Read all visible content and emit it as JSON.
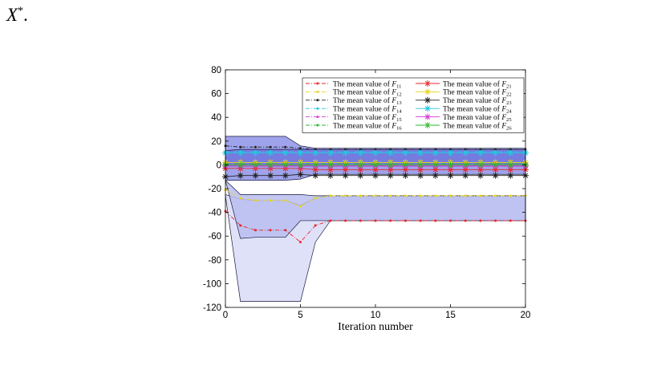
{
  "page_fragment": {
    "symbol": "X",
    "sup": "*",
    "tail": "."
  },
  "chart_data": {
    "type": "line",
    "title": "",
    "xlabel": "Iteration number",
    "ylabel": "",
    "xlim": [
      0,
      20
    ],
    "ylim": [
      -120,
      80
    ],
    "xticks": [
      0,
      5,
      10,
      15,
      20
    ],
    "yticks": [
      80,
      60,
      40,
      20,
      0,
      -20,
      -40,
      -60,
      -80,
      -100,
      -120
    ],
    "grid": false,
    "legend_position": "top-right",
    "legend_columns": 2,
    "x": [
      0,
      1,
      2,
      3,
      4,
      5,
      6,
      7,
      8,
      9,
      10,
      11,
      12,
      13,
      14,
      15,
      16,
      17,
      18,
      19,
      20
    ],
    "series": [
      {
        "name": "The mean value of ",
        "sub": "11",
        "color": "#e8262a",
        "style": "dashdot",
        "marker": "dot",
        "values": [
          -39,
          -51,
          -55,
          -55,
          -55,
          -65,
          -51,
          -47,
          -47,
          -47,
          -47,
          -47,
          -47,
          -47,
          -47,
          -47,
          -47,
          -47,
          -47,
          -47,
          -47
        ]
      },
      {
        "name": "The mean value of ",
        "sub": "12",
        "color": "#e7d51a",
        "style": "dashdot",
        "marker": "dot",
        "values": [
          -21,
          -28,
          -30,
          -30,
          -30,
          -35,
          -28,
          -26,
          -26,
          -26,
          -26,
          -26,
          -26,
          -26,
          -26,
          -26,
          -26,
          -26,
          -26,
          -26,
          -26
        ]
      },
      {
        "name": "The mean value of ",
        "sub": "13",
        "color": "#222222",
        "style": "dashdot",
        "marker": "dot",
        "values": [
          16,
          15,
          15,
          15,
          15,
          14,
          13,
          13,
          13,
          13,
          13,
          13,
          13,
          13,
          13,
          13,
          13,
          13,
          13,
          13,
          13
        ]
      },
      {
        "name": "The mean value of ",
        "sub": "14",
        "color": "#22c8e0",
        "style": "dashdot",
        "marker": "dot",
        "values": [
          11,
          11,
          11,
          11,
          11,
          11,
          11,
          11,
          11,
          11,
          11,
          11,
          11,
          11,
          11,
          11,
          11,
          11,
          11,
          11,
          11
        ]
      },
      {
        "name": "The mean value of ",
        "sub": "15",
        "color": "#d63ad6",
        "style": "dashdot",
        "marker": "dot",
        "values": [
          0,
          0,
          0,
          0,
          0,
          -1,
          -1,
          -1,
          -1,
          -1,
          -1,
          -1,
          -1,
          -1,
          -1,
          -1,
          -1,
          -1,
          -1,
          -1,
          -1
        ]
      },
      {
        "name": "The mean value of ",
        "sub": "16",
        "color": "#2cb82c",
        "style": "dashdot",
        "marker": "dot",
        "values": [
          1,
          1,
          1,
          1,
          1,
          1,
          1,
          1,
          1,
          1,
          1,
          1,
          1,
          1,
          1,
          1,
          1,
          1,
          1,
          1,
          1
        ]
      },
      {
        "name": "The mean value of ",
        "sub": "21",
        "color": "#e8262a",
        "style": "solid",
        "marker": "star",
        "values": [
          -3,
          -3,
          -3,
          -3,
          -3,
          -3,
          -4,
          -4,
          -4,
          -4,
          -4,
          -4,
          -4,
          -4,
          -4,
          -4,
          -4,
          -4,
          -4,
          -4,
          -4
        ]
      },
      {
        "name": "The mean value of ",
        "sub": "22",
        "color": "#e7d51a",
        "style": "solid",
        "marker": "star",
        "values": [
          2,
          2,
          2,
          2,
          2,
          2,
          2,
          2,
          2,
          2,
          2,
          2,
          2,
          2,
          2,
          2,
          2,
          2,
          2,
          2,
          2
        ]
      },
      {
        "name": "The mean value of ",
        "sub": "23",
        "color": "#222222",
        "style": "solid",
        "marker": "star",
        "values": [
          -10,
          -9,
          -9,
          -9,
          -9,
          -8,
          -9,
          -9,
          -9,
          -9,
          -9,
          -9,
          -9,
          -9,
          -9,
          -9,
          -9,
          -9,
          -9,
          -9,
          -9
        ]
      },
      {
        "name": "The mean value of ",
        "sub": "24",
        "color": "#22c8e0",
        "style": "solid",
        "marker": "star",
        "values": [
          10,
          10,
          10,
          10,
          10,
          10,
          10,
          10,
          10,
          10,
          10,
          10,
          10,
          10,
          10,
          10,
          10,
          10,
          10,
          10,
          10
        ]
      },
      {
        "name": "The mean value of ",
        "sub": "25",
        "color": "#d63ad6",
        "style": "solid",
        "marker": "star",
        "values": [
          -1,
          -1,
          -1,
          -1,
          -1,
          -1,
          -1,
          -1,
          -1,
          -1,
          -1,
          -1,
          -1,
          -1,
          -1,
          -1,
          -1,
          -1,
          -1,
          -1,
          -1
        ]
      },
      {
        "name": "The mean value of ",
        "sub": "26",
        "color": "#2cb82c",
        "style": "solid",
        "marker": "star",
        "values": [
          0,
          0,
          0,
          0,
          0,
          0,
          0,
          0,
          0,
          0,
          0,
          0,
          0,
          0,
          0,
          0,
          0,
          0,
          0,
          0,
          0
        ]
      }
    ],
    "bands": [
      {
        "fill": "#d9dcf8",
        "x": [
          0,
          1,
          2,
          3,
          4,
          5,
          6,
          7,
          8,
          9,
          10,
          11,
          12,
          13,
          14,
          15,
          16,
          17,
          18,
          19,
          20
        ],
        "upper": [
          -25,
          -29,
          -30,
          -30,
          -30,
          -34,
          -28,
          -26,
          -26,
          -26,
          -26,
          -26,
          -26,
          -26,
          -26,
          -26,
          -26,
          -26,
          -26,
          -26,
          -26
        ],
        "lower": [
          -26,
          -115,
          -115,
          -115,
          -115,
          -115,
          -65,
          -47,
          -47,
          -47,
          -47,
          -47,
          -47,
          -47,
          -47,
          -47,
          -47,
          -47,
          -47,
          -47,
          -47
        ]
      },
      {
        "fill": "#b9bdf0",
        "x": [
          0,
          1,
          2,
          3,
          4,
          5,
          6,
          7,
          8,
          9,
          10,
          11,
          12,
          13,
          14,
          15,
          16,
          17,
          18,
          19,
          20
        ],
        "upper": [
          -13,
          -25,
          -25,
          -25,
          -25,
          -25,
          -26,
          -26,
          -26,
          -26,
          -26,
          -26,
          -26,
          -26,
          -26,
          -26,
          -26,
          -26,
          -26,
          -26,
          -26
        ],
        "lower": [
          -13,
          -62,
          -61,
          -61,
          -61,
          -47,
          -47,
          -47,
          -47,
          -47,
          -47,
          -47,
          -47,
          -47,
          -47,
          -47,
          -47,
          -47,
          -47,
          -47,
          -47
        ]
      },
      {
        "fill": "#8e93e8",
        "x": [
          0,
          1,
          2,
          3,
          4,
          5,
          6,
          7,
          8,
          9,
          10,
          11,
          12,
          13,
          14,
          15,
          16,
          17,
          18,
          19,
          20
        ],
        "upper": [
          24,
          24,
          24,
          24,
          24,
          16,
          14,
          14,
          14,
          14,
          14,
          14,
          14,
          14,
          14,
          14,
          14,
          14,
          14,
          14,
          14
        ],
        "lower": [
          -13,
          -13,
          -13,
          -13,
          -13,
          -12,
          -8,
          -8,
          -8,
          -8,
          -8,
          -8,
          -8,
          -8,
          -8,
          -8,
          -8,
          -8,
          -8,
          -8,
          -8
        ]
      },
      {
        "fill": "#6f74de",
        "x": [
          0,
          1,
          2,
          3,
          4,
          5,
          6,
          7,
          8,
          9,
          10,
          11,
          12,
          13,
          14,
          15,
          16,
          17,
          18,
          19,
          20
        ],
        "upper": [
          12,
          13,
          13,
          13,
          13,
          13,
          13,
          13,
          13,
          13,
          13,
          13,
          13,
          13,
          13,
          13,
          13,
          13,
          13,
          13,
          13
        ],
        "lower": [
          -1,
          -1,
          -1,
          -1,
          -1,
          -1,
          -1,
          -1,
          -1,
          -1,
          -1,
          -1,
          -1,
          -1,
          -1,
          -1,
          -1,
          -1,
          -1,
          -1,
          -1
        ]
      }
    ]
  }
}
